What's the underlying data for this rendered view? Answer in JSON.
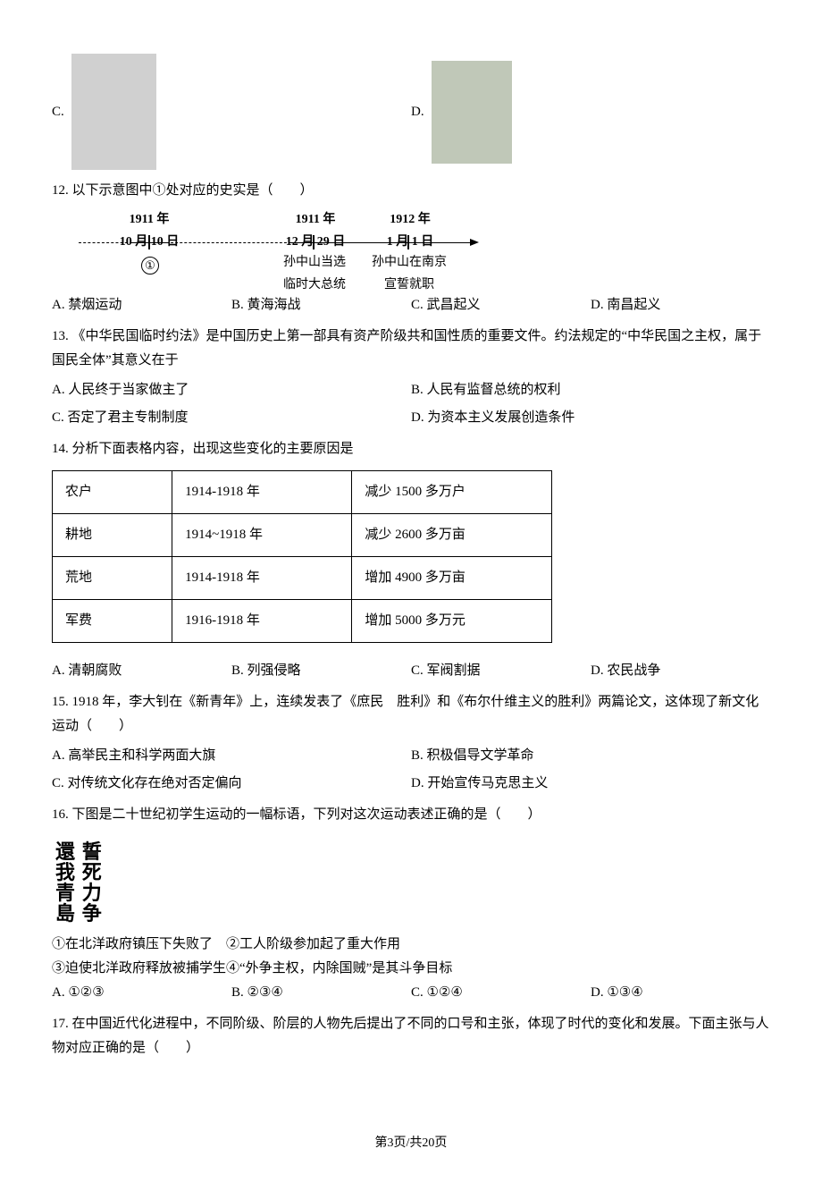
{
  "q11": {
    "label_c": "C.",
    "label_d": "D."
  },
  "q12": {
    "number": "12.",
    "text": "以下示意图中①处对应的史实是（　　）",
    "timeline": {
      "date1_line1": "1911 年",
      "date1_line2": "10 月 10 日",
      "date2_line1": "1911 年",
      "date2_line2": "12 月 29 日",
      "date3_line1": "1912 年",
      "date3_line2": "1 月 1 日",
      "mark1": "①",
      "label2_line1": "孙中山当选",
      "label2_line2": "临时大总统",
      "label3_line1": "孙中山在南京",
      "label3_line2": "宣誓就职"
    },
    "opts": {
      "a": "A. 禁烟运动",
      "b": "B. 黄海海战",
      "c": "C. 武昌起义",
      "d": "D. 南昌起义"
    }
  },
  "q13": {
    "number": "13.",
    "text": "《中华民国临时约法》是中国历史上第一部具有资产阶级共和国性质的重要文件。约法规定的“中华民国之主权，属于国民全体”其意义在于",
    "opts": {
      "a": "A. 人民终于当家做主了",
      "b": "B. 人民有监督总统的权利",
      "c": "C. 否定了君主专制制度",
      "d": "D. 为资本主义发展创造条件"
    }
  },
  "q14": {
    "number": "14.",
    "text": "分析下面表格内容，出现这些变化的主要原因是",
    "table": {
      "rows": [
        [
          "农户",
          "1914-1918 年",
          "减少 1500 多万户"
        ],
        [
          "耕地",
          "1914~1918 年",
          "减少 2600 多万亩"
        ],
        [
          "荒地",
          "1914-1918 年",
          "增加 4900 多万亩"
        ],
        [
          "军费",
          "1916-1918 年",
          "增加 5000 多万元"
        ]
      ]
    },
    "opts": {
      "a": "A. 清朝腐败",
      "b": "B. 列强侵略",
      "c": "C. 军阀割据",
      "d": "D. 农民战争"
    }
  },
  "q15": {
    "number": "15.",
    "text": "1918 年，李大钊在《新青年》上，连续发表了《庶民　胜利》和《布尔什维主义的胜利》两篇论文，这体现了新文化运动（　　）",
    "opts": {
      "a": "A. 高举民主和科学两面大旗",
      "b": "B. 积极倡导文学革命",
      "c": "C. 对传统文化存在绝对否定偏向",
      "d": "D. 开始宣传马克思主义"
    }
  },
  "q16": {
    "number": "16.",
    "text": "下图是二十世纪初学生运动的一幅标语，下列对这次运动表述正确的是（　　）",
    "slogan": {
      "col1": "誓死力争",
      "col2": "還我青島"
    },
    "stmt": "①在北洋政府镇压下失败了　②工人阶级参加起了重大作用",
    "stmt2": "③迫使北洋政府释放被捕学生④“外争主权，内除国贼”是其斗争目标",
    "opts": {
      "a": "A. ①②③",
      "b": "B. ②③④",
      "c": "C. ①②④",
      "d": "D. ①③④"
    }
  },
  "q17": {
    "number": "17.",
    "text": "在中国近代化进程中，不同阶级、阶层的人物先后提出了不同的口号和主张，体现了时代的变化和发展。下面主张与人物对应正确的是（　　）"
  },
  "footer": "第3页/共20页"
}
